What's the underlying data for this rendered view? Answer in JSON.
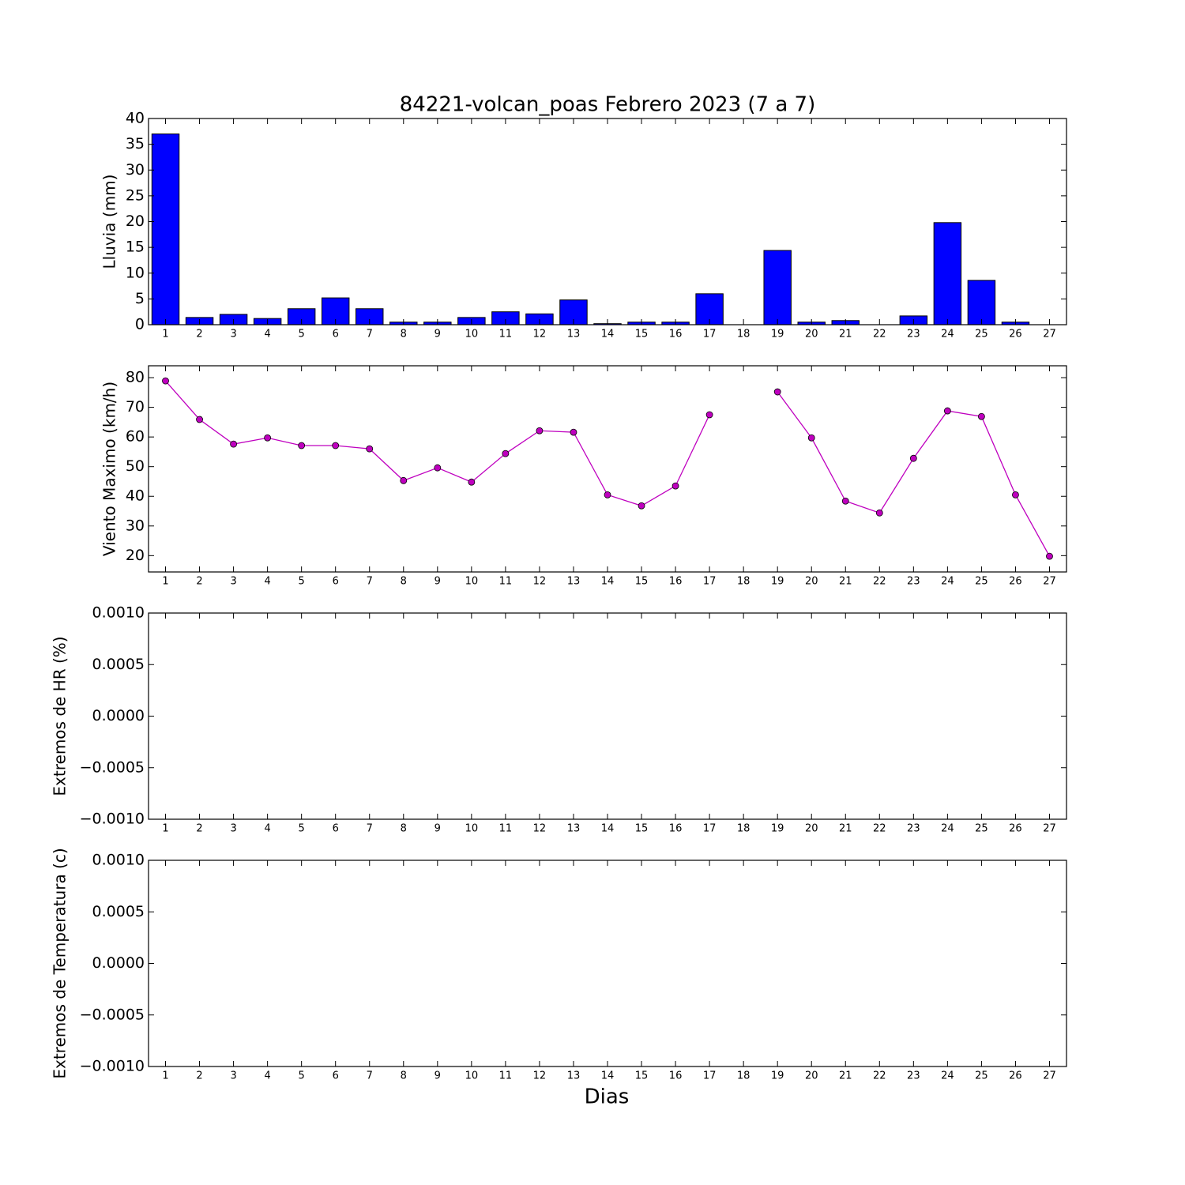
{
  "chart_data": [
    {
      "type": "bar",
      "title": "84221-volcan_poas Febrero 2023  (7 a 7)",
      "y_label": "Lluvia (mm)",
      "x": [
        1,
        2,
        3,
        4,
        5,
        6,
        7,
        8,
        9,
        10,
        11,
        12,
        13,
        14,
        15,
        16,
        17,
        18,
        19,
        20,
        21,
        22,
        23,
        24,
        25,
        26,
        27
      ],
      "values": [
        37.0,
        1.4,
        2.0,
        1.2,
        3.1,
        5.2,
        3.1,
        0.5,
        0.5,
        1.4,
        2.5,
        2.1,
        4.8,
        0.2,
        0.5,
        0.5,
        6.0,
        null,
        14.4,
        0.5,
        0.8,
        0,
        1.7,
        19.8,
        8.6,
        0.5,
        0
      ],
      "color": "#0000ff",
      "xlim": [
        0.5,
        27.5
      ],
      "xticks": [
        1,
        2,
        3,
        4,
        5,
        6,
        7,
        8,
        9,
        10,
        11,
        12,
        13,
        14,
        15,
        16,
        17,
        18,
        19,
        20,
        21,
        22,
        23,
        24,
        25,
        26,
        27
      ],
      "ylim": [
        0,
        40
      ],
      "yticks": [
        0,
        5,
        10,
        15,
        20,
        25,
        30,
        35,
        40
      ]
    },
    {
      "type": "line",
      "y_label": "Viento Maximo (km/h)",
      "x": [
        1,
        2,
        3,
        4,
        5,
        6,
        7,
        8,
        9,
        10,
        11,
        12,
        13,
        14,
        15,
        16,
        17,
        18,
        19,
        20,
        21,
        22,
        23,
        24,
        25,
        26,
        27
      ],
      "values": [
        78.9,
        65.9,
        57.6,
        59.7,
        57.1,
        57.1,
        56.0,
        45.3,
        49.6,
        44.8,
        54.4,
        62.1,
        61.6,
        40.5,
        36.8,
        43.5,
        67.5,
        null,
        75.2,
        59.7,
        38.4,
        34.4,
        52.8,
        68.8,
        66.9,
        40.5,
        19.8
      ],
      "color": "#bf00bf",
      "xlim": [
        0.5,
        27.5
      ],
      "xticks": [
        1,
        2,
        3,
        4,
        5,
        6,
        7,
        8,
        9,
        10,
        11,
        12,
        13,
        14,
        15,
        16,
        17,
        18,
        19,
        20,
        21,
        22,
        23,
        24,
        25,
        26,
        27
      ],
      "ylim": [
        14.5,
        84
      ],
      "yticks": [
        20,
        30,
        40,
        50,
        60,
        70,
        80
      ]
    },
    {
      "type": "line",
      "y_label": "Extremos de HR (%)",
      "xlim": [
        0.5,
        27.5
      ],
      "xticks": [
        1,
        2,
        3,
        4,
        5,
        6,
        7,
        8,
        9,
        10,
        11,
        12,
        13,
        14,
        15,
        16,
        17,
        18,
        19,
        20,
        21,
        22,
        23,
        24,
        25,
        26,
        27
      ],
      "ylim": [
        -0.001,
        0.001
      ],
      "yticks": [
        {
          "value": -0.001,
          "label": "−0.0010"
        },
        {
          "value": -0.0005,
          "label": "−0.0005"
        },
        {
          "value": 0,
          "label": "0.0000"
        },
        {
          "value": 0.0005,
          "label": "0.0005"
        },
        {
          "value": 0.001,
          "label": "0.0010"
        }
      ]
    },
    {
      "type": "line",
      "y_label": "Extremos de Temperatura (c)",
      "x_label": "Dias",
      "xlim": [
        0.5,
        27.5
      ],
      "xticks": [
        1,
        2,
        3,
        4,
        5,
        6,
        7,
        8,
        9,
        10,
        11,
        12,
        13,
        14,
        15,
        16,
        17,
        18,
        19,
        20,
        21,
        22,
        23,
        24,
        25,
        26,
        27
      ],
      "ylim": [
        -0.001,
        0.001
      ],
      "yticks": [
        {
          "value": -0.001,
          "label": "−0.0010"
        },
        {
          "value": -0.0005,
          "label": "−0.0005"
        },
        {
          "value": 0,
          "label": "0.0000"
        },
        {
          "value": 0.0005,
          "label": "0.0005"
        },
        {
          "value": 0.001,
          "label": "0.0010"
        }
      ]
    }
  ]
}
